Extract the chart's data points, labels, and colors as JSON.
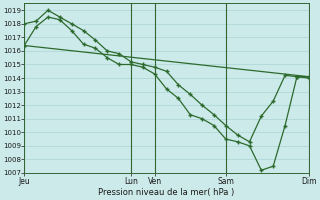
{
  "background_color": "#cceaea",
  "grid_color": "#aad4d4",
  "line_color": "#2d6a2d",
  "xlabel": "Pression niveau de la mer( hPa )",
  "ylim": [
    1007,
    1019.5
  ],
  "yticks": [
    1007,
    1008,
    1009,
    1010,
    1011,
    1012,
    1013,
    1014,
    1015,
    1016,
    1017,
    1018,
    1019
  ],
  "day_labels": [
    "Jeu",
    "Lun",
    "Ven",
    "Sam",
    "Dim"
  ],
  "day_positions": [
    0,
    9,
    11,
    17,
    24
  ],
  "xlim": [
    0,
    24
  ],
  "line1_straight": {
    "x": [
      0,
      24
    ],
    "y": [
      1016.4,
      1014.1
    ]
  },
  "line2": {
    "x": [
      0,
      1,
      2,
      3,
      4,
      5,
      6,
      7,
      8,
      9,
      10,
      11,
      12,
      13,
      14,
      15,
      16,
      17,
      18,
      19,
      20,
      21,
      22,
      23,
      24
    ],
    "y": [
      1018.0,
      1018.2,
      1019.0,
      1018.5,
      1018.0,
      1017.5,
      1016.8,
      1016.0,
      1015.8,
      1015.2,
      1015.0,
      1014.8,
      1014.5,
      1013.5,
      1012.8,
      1012.0,
      1011.3,
      1010.5,
      1009.8,
      1009.3,
      1011.2,
      1012.3,
      1014.2,
      1014.1,
      1014.1
    ]
  },
  "line3": {
    "x": [
      0,
      1,
      2,
      3,
      4,
      5,
      6,
      7,
      8,
      9,
      10,
      11,
      12,
      13,
      14,
      15,
      16,
      17,
      18,
      19,
      20,
      21,
      22,
      23,
      24
    ],
    "y": [
      1016.4,
      1017.8,
      1018.5,
      1018.3,
      1017.5,
      1016.5,
      1016.2,
      1015.5,
      1015.0,
      1015.0,
      1014.8,
      1014.3,
      1013.2,
      1012.5,
      1011.3,
      1011.0,
      1010.5,
      1009.5,
      1009.3,
      1009.0,
      1007.2,
      1007.5,
      1010.5,
      1014.1,
      1014.0
    ]
  }
}
